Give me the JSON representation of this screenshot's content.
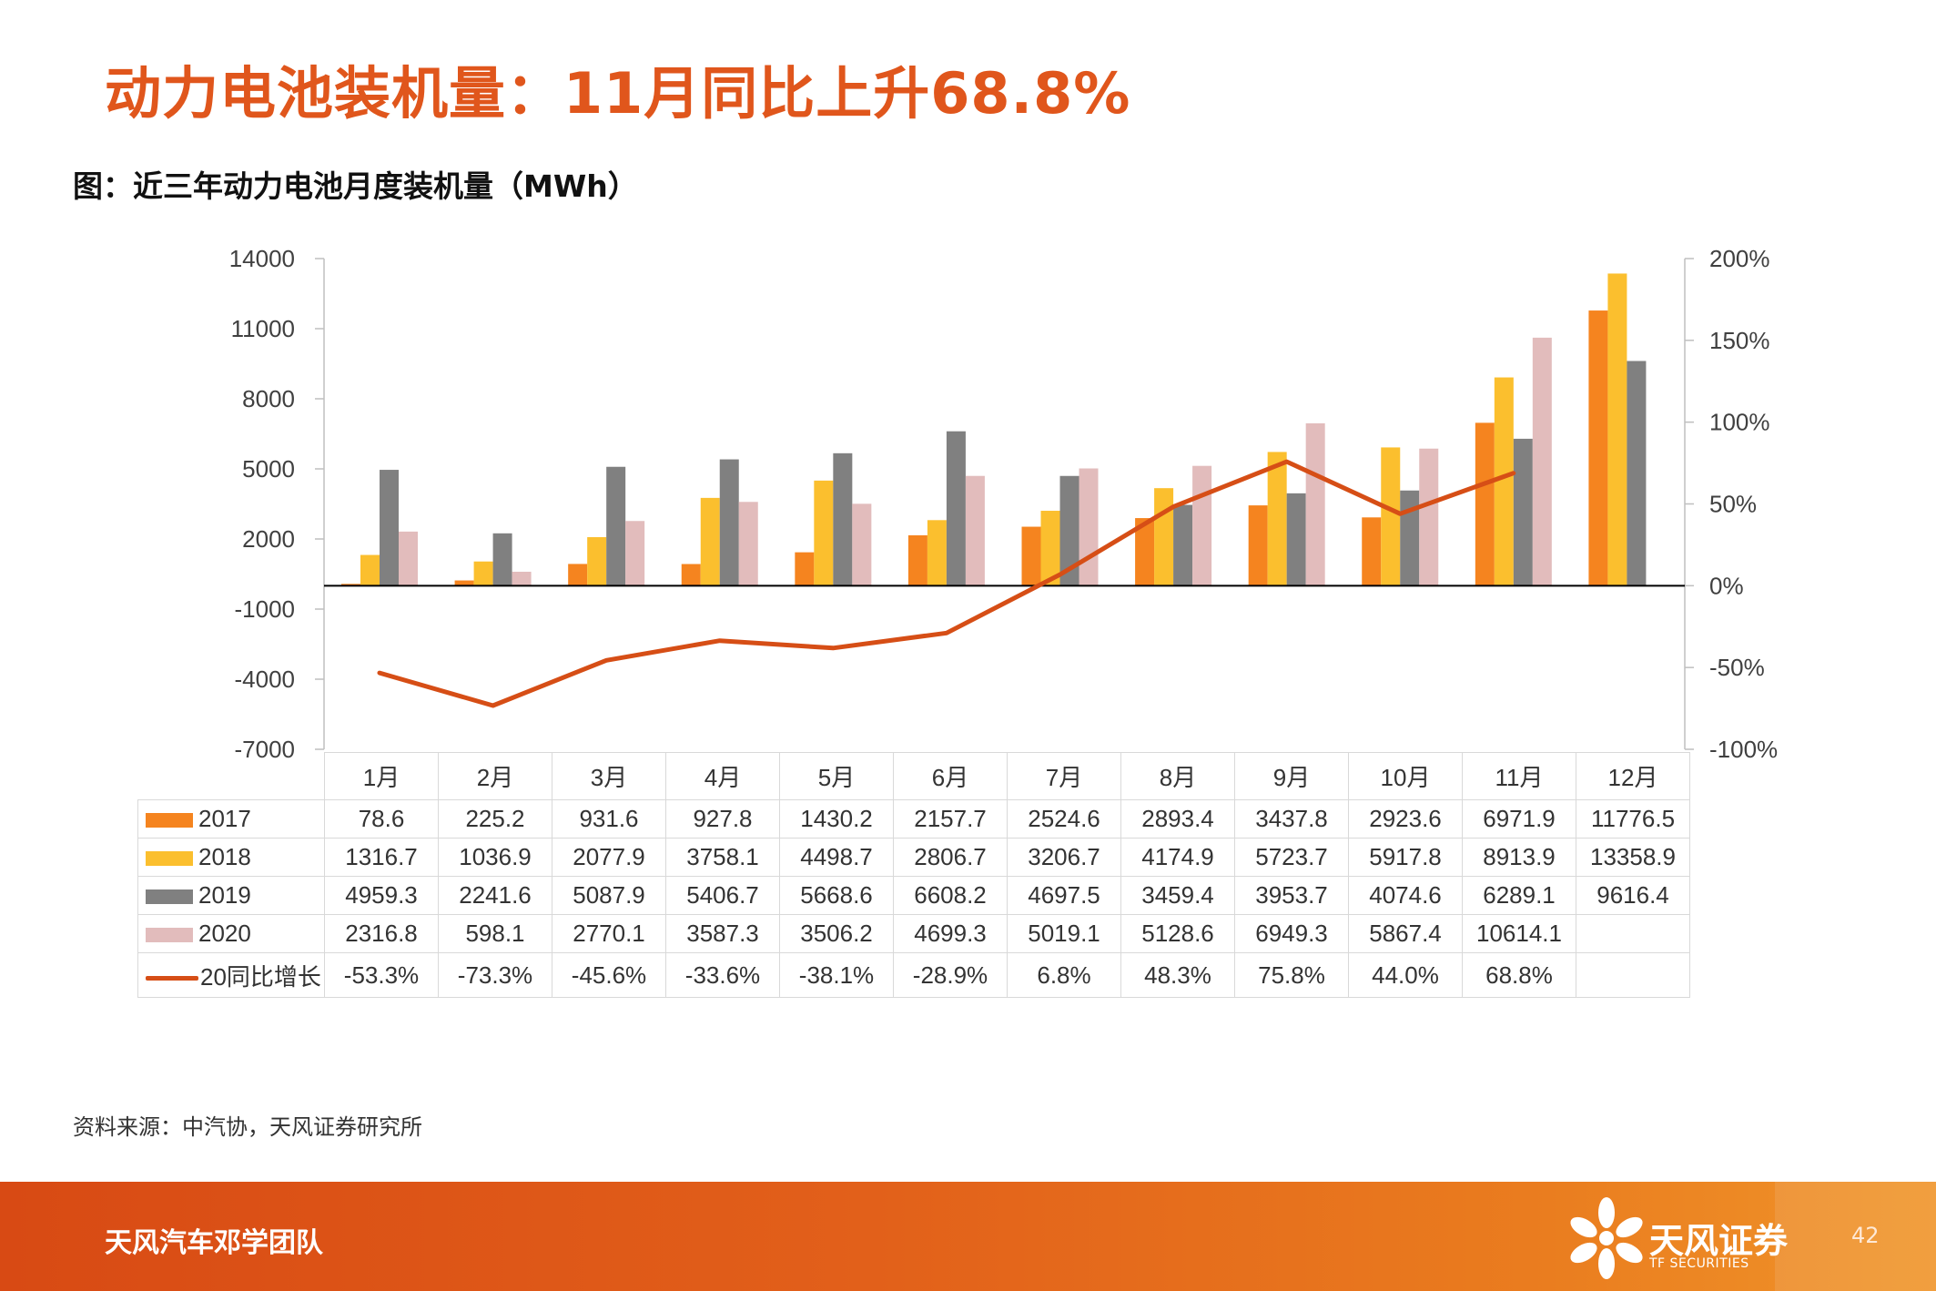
{
  "slide": {
    "title": "动力电池装机量：11月同比上升68.8%",
    "chart_caption": "图：近三年动力电池月度装机量（MWh）",
    "source": "资料来源：中汽协，天风证券研究所",
    "footer_team": "天风汽车邓学团队",
    "brand_name": "天风证券",
    "brand_en": "TF SECURITIES",
    "page_number": "42"
  },
  "colors": {
    "title": "#e0561c",
    "s2017": "#f5841f",
    "s2018": "#fbbf2e",
    "s2019": "#808080",
    "s2020": "#e2bcbc",
    "growth": "#d64e16"
  },
  "chart_data": {
    "type": "bar",
    "title": "",
    "categories": [
      "1月",
      "2月",
      "3月",
      "4月",
      "5月",
      "6月",
      "7月",
      "8月",
      "9月",
      "10月",
      "11月",
      "12月"
    ],
    "left_axis": {
      "ticks": [
        "14000",
        "11000",
        "8000",
        "5000",
        "2000",
        "-1000",
        "-4000",
        "-7000"
      ],
      "range": [
        -7000,
        14000
      ]
    },
    "right_axis": {
      "ticks": [
        "200%",
        "150%",
        "100%",
        "50%",
        "0%",
        "-50%",
        "-100%"
      ],
      "range": [
        -100,
        200
      ]
    },
    "series": [
      {
        "name": "2017",
        "type": "bar",
        "color": "#f5841f",
        "values": [
          78.6,
          225.2,
          931.6,
          927.8,
          1430.2,
          2157.7,
          2524.6,
          2893.4,
          3437.8,
          2923.6,
          6971.9,
          11776.5
        ],
        "labels": [
          "78.6",
          "225.2",
          "931.6",
          "927.8",
          "1430.2",
          "2157.7",
          "2524.6",
          "2893.4",
          "3437.8",
          "2923.6",
          "6971.9",
          "11776.5"
        ]
      },
      {
        "name": "2018",
        "type": "bar",
        "color": "#fbbf2e",
        "values": [
          1316.7,
          1036.9,
          2077.9,
          3758.1,
          4498.7,
          2806.7,
          3206.7,
          4174.9,
          5723.7,
          5917.8,
          8913.9,
          13358.9
        ],
        "labels": [
          "1316.7",
          "1036.9",
          "2077.9",
          "3758.1",
          "4498.7",
          "2806.7",
          "3206.7",
          "4174.9",
          "5723.7",
          "5917.8",
          "8913.9",
          "13358.9"
        ]
      },
      {
        "name": "2019",
        "type": "bar",
        "color": "#808080",
        "values": [
          4959.3,
          2241.6,
          5087.9,
          5406.7,
          5668.6,
          6608.2,
          4697.5,
          3459.4,
          3953.7,
          4074.6,
          6289.1,
          9616.4
        ],
        "labels": [
          "4959.3",
          "2241.6",
          "5087.9",
          "5406.7",
          "5668.6",
          "6608.2",
          "4697.5",
          "3459.4",
          "3953.7",
          "4074.6",
          "6289.1",
          "9616.4"
        ]
      },
      {
        "name": "2020",
        "type": "bar",
        "color": "#e2bcbc",
        "values": [
          2316.8,
          598.1,
          2770.1,
          3587.3,
          3506.2,
          4699.3,
          5019.1,
          5128.6,
          6949.3,
          5867.4,
          10614.1,
          null
        ],
        "labels": [
          "2316.8",
          "598.1",
          "2770.1",
          "3587.3",
          "3506.2",
          "4699.3",
          "5019.1",
          "5128.6",
          "6949.3",
          "5867.4",
          "10614.1",
          ""
        ]
      },
      {
        "name": "20同比增长",
        "type": "line",
        "axis": "right",
        "color": "#d64e16",
        "values": [
          -53.3,
          -73.3,
          -45.6,
          -33.6,
          -38.1,
          -28.9,
          6.8,
          48.3,
          75.8,
          44.0,
          68.8,
          null
        ],
        "labels": [
          "-53.3%",
          "-73.3%",
          "-45.6%",
          "-33.6%",
          "-38.1%",
          "-28.9%",
          "6.8%",
          "48.3%",
          "75.8%",
          "44.0%",
          "68.8%",
          ""
        ]
      }
    ]
  }
}
